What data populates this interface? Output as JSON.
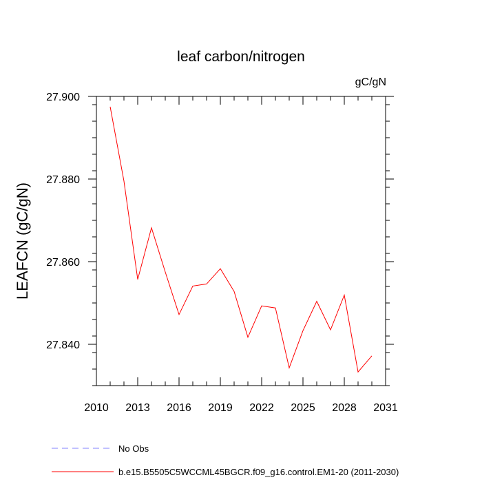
{
  "chart_data": {
    "type": "line",
    "title": "leaf carbon/nitrogen",
    "units": "gC/gN",
    "ylabel": "LEAFCN  (gC/gN)",
    "xlabel": "",
    "xlim": [
      2010,
      2031
    ],
    "ylim": [
      27.83,
      27.9
    ],
    "x_ticks": [
      2010,
      2013,
      2016,
      2019,
      2022,
      2025,
      2028,
      2031
    ],
    "y_ticks": [
      27.84,
      27.86,
      27.88,
      27.9
    ],
    "y_tick_labels": [
      "27.840",
      "27.860",
      "27.880",
      "27.900"
    ],
    "series": [
      {
        "name": "b.e15.B5505C5WCCML45BGCR.f09_g16.control.EM1-20 (2011-2030)",
        "color": "#ff0000",
        "style": "solid",
        "x": [
          2011,
          2012,
          2013,
          2014,
          2015,
          2016,
          2017,
          2018,
          2019,
          2020,
          2021,
          2022,
          2023,
          2024,
          2025,
          2026,
          2027,
          2028,
          2029,
          2030
        ],
        "values": [
          27.8975,
          27.8795,
          27.8557,
          27.8682,
          27.8575,
          27.8472,
          27.8541,
          27.8546,
          27.8583,
          27.8528,
          27.8417,
          27.8493,
          27.8488,
          27.8343,
          27.8433,
          27.8504,
          27.8435,
          27.8519,
          27.8333,
          27.8372
        ]
      }
    ],
    "legend": [
      {
        "label": "No Obs",
        "color": "#8080ff",
        "style": "dashed"
      },
      {
        "label": "b.e15.B5505C5WCCML45BGCR.f09_g16.control.EM1-20 (2011-2030)",
        "color": "#ff0000",
        "style": "solid"
      }
    ],
    "legend_position": "bottom"
  }
}
